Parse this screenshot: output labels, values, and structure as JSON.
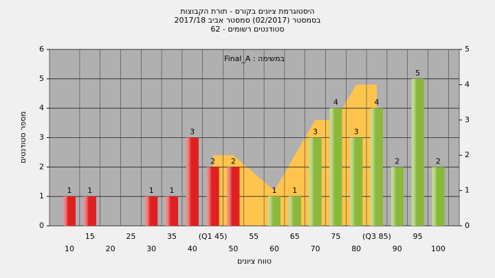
{
  "chart_data": {
    "type": "bar",
    "title": "היסטוגרמת ציונים בקורס - תורת הקבוצות",
    "subtitle": "בסמסטר  (02/2017)  סמסטר אביב 2017/18",
    "subtitle2": "סטודנטים רשומים - 62",
    "annotation": "Final_A : במשימה",
    "y_label": "מספר סטודנטים",
    "x_label": "טווח ציונים",
    "categories": [
      "10",
      "15",
      "20",
      "25",
      "30",
      "35",
      "40",
      "(Q1 45)",
      "50",
      "55",
      "60",
      "65",
      "70",
      "75",
      "80",
      "(Q3 85)",
      "90",
      "95",
      "100"
    ],
    "values": [
      1,
      1,
      0,
      0,
      1,
      1,
      3,
      2,
      2,
      0,
      1,
      1,
      3,
      4,
      3,
      4,
      2,
      5,
      2
    ],
    "colors": [
      "#e02020",
      "#e02020",
      "#e02020",
      "#e02020",
      "#e02020",
      "#e02020",
      "#e02020",
      "#e02020",
      "#e02020",
      "#e02020",
      "#8ab83a",
      "#8ab83a",
      "#8ab83a",
      "#8ab83a",
      "#8ab83a",
      "#8ab83a",
      "#8ab83a",
      "#8ab83a",
      "#8ab83a"
    ],
    "area": {
      "color": "#ffc44d",
      "axis": "y2",
      "values": [
        null,
        null,
        null,
        null,
        null,
        null,
        null,
        2,
        2,
        1.5,
        1,
        2,
        3,
        3,
        4,
        4,
        null,
        null,
        null
      ]
    },
    "ylim": [
      0,
      6
    ],
    "yticks": [
      0,
      1,
      2,
      3,
      4,
      5,
      6
    ],
    "y2lim": [
      0,
      5
    ],
    "y2ticks": [
      0,
      1,
      2,
      3,
      4,
      5
    ],
    "grid": true
  }
}
